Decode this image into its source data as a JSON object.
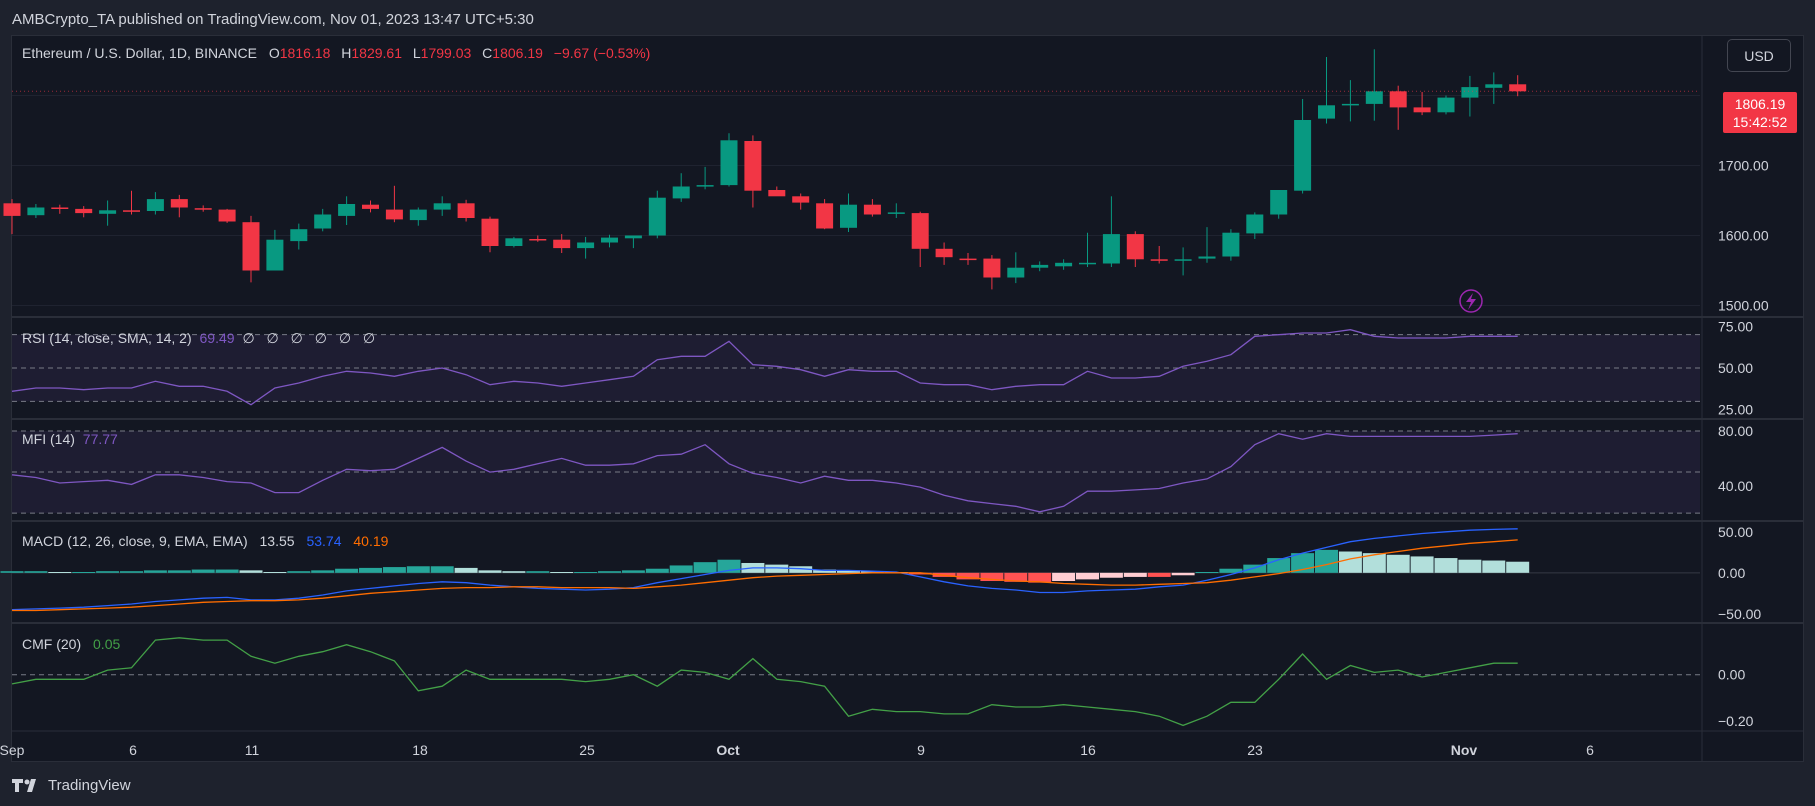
{
  "publisher_text": "AMBCrypto_TA published on TradingView.com, Nov 01, 2023 13:47 UTC+5:30",
  "main_legend": {
    "symbol": "Ethereum / U.S. Dollar, 1D, BINANCE",
    "o_label": "O",
    "o_value": "1816.18",
    "h_label": "H",
    "h_value": "1829.61",
    "l_label": "L",
    "l_value": "1799.03",
    "c_label": "C",
    "c_value": "1806.19",
    "change": "−9.67 (−0.53%)"
  },
  "currency_button": "USD",
  "price_tag": {
    "price": "1806.19",
    "countdown": "15:42:52"
  },
  "footer_brand": "TradingView",
  "colors": {
    "up": "#089981",
    "down": "#f23645",
    "rsi": "#7e57c2",
    "macd": "#2962ff",
    "signal": "#ff6d00",
    "cmf": "#43a047",
    "bg": "#131722"
  },
  "chart_data": [
    {
      "type": "candlestick",
      "title": "Ethereum / U.S. Dollar, 1D, BINANCE",
      "x_ticks": [
        "Sep",
        "6",
        "11",
        "18",
        "25",
        "Oct",
        "9",
        "16",
        "23",
        "Nov",
        "6"
      ],
      "y_ticks": [
        "1500.00",
        "1600.00",
        "1700.00"
      ],
      "ylim": [
        1485,
        1885
      ],
      "candles": [
        {
          "o": 1646,
          "h": 1652,
          "l": 1602,
          "c": 1628
        },
        {
          "o": 1629,
          "h": 1645,
          "l": 1625,
          "c": 1640
        },
        {
          "o": 1640,
          "h": 1644,
          "l": 1631,
          "c": 1638
        },
        {
          "o": 1638,
          "h": 1642,
          "l": 1626,
          "c": 1632
        },
        {
          "o": 1631,
          "h": 1650,
          "l": 1614,
          "c": 1636
        },
        {
          "o": 1636,
          "h": 1664,
          "l": 1630,
          "c": 1634
        },
        {
          "o": 1635,
          "h": 1662,
          "l": 1630,
          "c": 1652
        },
        {
          "o": 1652,
          "h": 1658,
          "l": 1626,
          "c": 1640
        },
        {
          "o": 1639,
          "h": 1643,
          "l": 1634,
          "c": 1638
        },
        {
          "o": 1637,
          "h": 1638,
          "l": 1618,
          "c": 1620
        },
        {
          "o": 1619,
          "h": 1628,
          "l": 1533,
          "c": 1550
        },
        {
          "o": 1550,
          "h": 1608,
          "l": 1550,
          "c": 1594
        },
        {
          "o": 1592,
          "h": 1617,
          "l": 1580,
          "c": 1609
        },
        {
          "o": 1610,
          "h": 1638,
          "l": 1606,
          "c": 1630
        },
        {
          "o": 1628,
          "h": 1656,
          "l": 1615,
          "c": 1645
        },
        {
          "o": 1644,
          "h": 1650,
          "l": 1633,
          "c": 1638
        },
        {
          "o": 1637,
          "h": 1671,
          "l": 1619,
          "c": 1623
        },
        {
          "o": 1622,
          "h": 1640,
          "l": 1614,
          "c": 1637
        },
        {
          "o": 1637,
          "h": 1656,
          "l": 1628,
          "c": 1646
        },
        {
          "o": 1646,
          "h": 1651,
          "l": 1620,
          "c": 1625
        },
        {
          "o": 1624,
          "h": 1627,
          "l": 1576,
          "c": 1585
        },
        {
          "o": 1585,
          "h": 1598,
          "l": 1583,
          "c": 1596
        },
        {
          "o": 1595,
          "h": 1600,
          "l": 1591,
          "c": 1594
        },
        {
          "o": 1594,
          "h": 1602,
          "l": 1575,
          "c": 1582
        },
        {
          "o": 1582,
          "h": 1598,
          "l": 1567,
          "c": 1590
        },
        {
          "o": 1590,
          "h": 1601,
          "l": 1583,
          "c": 1597
        },
        {
          "o": 1596,
          "h": 1600,
          "l": 1582,
          "c": 1600
        },
        {
          "o": 1600,
          "h": 1664,
          "l": 1596,
          "c": 1654
        },
        {
          "o": 1653,
          "h": 1689,
          "l": 1648,
          "c": 1670
        },
        {
          "o": 1670,
          "h": 1698,
          "l": 1666,
          "c": 1672
        },
        {
          "o": 1672,
          "h": 1746,
          "l": 1670,
          "c": 1736
        },
        {
          "o": 1735,
          "h": 1743,
          "l": 1640,
          "c": 1664
        },
        {
          "o": 1665,
          "h": 1670,
          "l": 1658,
          "c": 1656
        },
        {
          "o": 1656,
          "h": 1660,
          "l": 1637,
          "c": 1647
        },
        {
          "o": 1646,
          "h": 1652,
          "l": 1609,
          "c": 1610
        },
        {
          "o": 1611,
          "h": 1660,
          "l": 1605,
          "c": 1644
        },
        {
          "o": 1644,
          "h": 1652,
          "l": 1627,
          "c": 1630
        },
        {
          "o": 1632,
          "h": 1646,
          "l": 1625,
          "c": 1633
        },
        {
          "o": 1632,
          "h": 1634,
          "l": 1555,
          "c": 1581
        },
        {
          "o": 1581,
          "h": 1590,
          "l": 1558,
          "c": 1569
        },
        {
          "o": 1567,
          "h": 1575,
          "l": 1558,
          "c": 1566
        },
        {
          "o": 1567,
          "h": 1572,
          "l": 1523,
          "c": 1540
        },
        {
          "o": 1540,
          "h": 1576,
          "l": 1532,
          "c": 1554
        },
        {
          "o": 1554,
          "h": 1563,
          "l": 1549,
          "c": 1558
        },
        {
          "o": 1556,
          "h": 1566,
          "l": 1551,
          "c": 1561
        },
        {
          "o": 1560,
          "h": 1604,
          "l": 1555,
          "c": 1561
        },
        {
          "o": 1560,
          "h": 1656,
          "l": 1555,
          "c": 1602
        },
        {
          "o": 1602,
          "h": 1606,
          "l": 1555,
          "c": 1566
        },
        {
          "o": 1566,
          "h": 1585,
          "l": 1560,
          "c": 1564
        },
        {
          "o": 1564,
          "h": 1583,
          "l": 1543,
          "c": 1566
        },
        {
          "o": 1567,
          "h": 1612,
          "l": 1561,
          "c": 1570
        },
        {
          "o": 1570,
          "h": 1609,
          "l": 1564,
          "c": 1604
        },
        {
          "o": 1603,
          "h": 1633,
          "l": 1595,
          "c": 1630
        },
        {
          "o": 1630,
          "h": 1662,
          "l": 1624,
          "c": 1665
        },
        {
          "o": 1664,
          "h": 1795,
          "l": 1660,
          "c": 1765
        },
        {
          "o": 1767,
          "h": 1855,
          "l": 1760,
          "c": 1786
        },
        {
          "o": 1786,
          "h": 1822,
          "l": 1763,
          "c": 1788
        },
        {
          "o": 1788,
          "h": 1866,
          "l": 1764,
          "c": 1806
        },
        {
          "o": 1806,
          "h": 1814,
          "l": 1751,
          "c": 1783
        },
        {
          "o": 1783,
          "h": 1805,
          "l": 1772,
          "c": 1776
        },
        {
          "o": 1776,
          "h": 1800,
          "l": 1773,
          "c": 1797
        },
        {
          "o": 1797,
          "h": 1828,
          "l": 1770,
          "c": 1812
        },
        {
          "o": 1811,
          "h": 1833,
          "l": 1788,
          "c": 1816
        },
        {
          "o": 1816,
          "h": 1829,
          "l": 1799,
          "c": 1806
        }
      ]
    },
    {
      "type": "line",
      "title": "RSI (14, close, SMA, 14, 2)",
      "last_value": "69.49",
      "placeholders": [
        "∅",
        "∅",
        "∅",
        "∅",
        "∅",
        "∅"
      ],
      "y_ticks": [
        "25.00",
        "50.00",
        "75.00"
      ],
      "levels": [
        70,
        50,
        30
      ],
      "ylim": [
        20,
        80
      ],
      "values": [
        36,
        38,
        38,
        37,
        38,
        38,
        42,
        39,
        39,
        36,
        28,
        38,
        41,
        45,
        48,
        47,
        45,
        48,
        50,
        46,
        40,
        42,
        41,
        39,
        41,
        43,
        45,
        55,
        57,
        57,
        66,
        52,
        51,
        49,
        45,
        49,
        48,
        48,
        41,
        40,
        40,
        37,
        39,
        40,
        40,
        48,
        44,
        44,
        45,
        51,
        54,
        58,
        69,
        70,
        71,
        71,
        73,
        69,
        68,
        68,
        68,
        69,
        69,
        69
      ]
    },
    {
      "type": "line",
      "title": "MFI (14)",
      "last_value": "77.77",
      "y_ticks": [
        "40.00",
        "80.00"
      ],
      "levels": [
        80,
        50,
        20
      ],
      "ylim": [
        15,
        88
      ],
      "values": [
        48,
        46,
        42,
        43,
        44,
        41,
        48,
        48,
        46,
        43,
        42,
        35,
        35,
        44,
        52,
        51,
        52,
        60,
        68,
        58,
        50,
        52,
        56,
        60,
        55,
        55,
        56,
        62,
        63,
        70,
        56,
        49,
        46,
        42,
        47,
        44,
        44,
        42,
        39,
        33,
        29,
        27,
        25,
        21,
        25,
        36,
        36,
        37,
        38,
        42,
        45,
        54,
        70,
        78,
        74,
        78,
        76,
        76,
        76,
        76,
        76,
        76,
        77,
        78
      ]
    },
    {
      "type": "bar+line",
      "title": "MACD (12, 26, close, 9, EMA, EMA)",
      "values_text": {
        "histogram": "13.55",
        "macd": "53.74",
        "signal": "40.19"
      },
      "y_ticks": [
        "−50.00",
        "0.00",
        "50.00"
      ],
      "ylim": [
        -60,
        62
      ],
      "histogram": [
        2,
        2,
        1,
        1,
        2,
        2,
        3,
        3,
        4,
        4,
        3,
        1,
        2,
        3,
        5,
        6,
        7,
        8,
        8,
        6,
        3,
        2,
        2,
        1,
        1,
        2,
        3,
        5,
        9,
        13,
        16,
        12,
        10,
        8,
        4,
        3,
        2,
        1,
        -2,
        -5,
        -8,
        -10,
        -11,
        -12,
        -10,
        -8,
        -6,
        -5,
        -5,
        -3,
        1,
        5,
        10,
        18,
        24,
        28,
        26,
        24,
        22,
        20,
        18,
        16,
        15,
        13.55
      ],
      "macd": [
        -45,
        -44,
        -43,
        -42,
        -40,
        -38,
        -35,
        -33,
        -31,
        -30,
        -33,
        -33,
        -31,
        -27,
        -22,
        -19,
        -16,
        -13,
        -11,
        -12,
        -15,
        -17,
        -19,
        -20,
        -21,
        -20,
        -18,
        -12,
        -7,
        -2,
        3,
        6,
        6,
        5,
        3,
        3,
        2,
        1,
        -5,
        -11,
        -16,
        -19,
        -21,
        -24,
        -24,
        -22,
        -21,
        -20,
        -17,
        -15,
        -9,
        -2,
        6,
        16,
        24,
        31,
        38,
        42,
        45,
        48,
        50,
        52,
        53,
        53.74
      ],
      "signal": [
        -46,
        -46,
        -45,
        -44,
        -43,
        -42,
        -40,
        -38,
        -36,
        -35,
        -34,
        -34,
        -33,
        -31,
        -28,
        -25,
        -23,
        -21,
        -19,
        -18,
        -18,
        -17,
        -17,
        -18,
        -18,
        -18,
        -19,
        -17,
        -15,
        -12,
        -9,
        -6,
        -4,
        -3,
        -2,
        -1,
        0,
        0,
        0,
        -3,
        -6,
        -8,
        -10,
        -11,
        -13,
        -14,
        -15,
        -15,
        -14,
        -13,
        -12,
        -9,
        -5,
        -1,
        4,
        10,
        17,
        22,
        26,
        30,
        33,
        36,
        38,
        40.19
      ]
    },
    {
      "type": "line",
      "title": "CMF (20)",
      "last_value": "0.05",
      "y_ticks": [
        "−0.20",
        "0.00"
      ],
      "levels": [
        0
      ],
      "ylim": [
        -0.24,
        0.22
      ],
      "values": [
        -0.04,
        -0.02,
        -0.02,
        -0.02,
        0.02,
        0.03,
        0.15,
        0.16,
        0.15,
        0.15,
        0.08,
        0.05,
        0.08,
        0.1,
        0.13,
        0.1,
        0.06,
        -0.07,
        -0.05,
        0.02,
        -0.02,
        -0.02,
        -0.02,
        -0.02,
        -0.03,
        -0.02,
        0.0,
        -0.05,
        0.02,
        0.01,
        -0.02,
        0.07,
        -0.02,
        -0.03,
        -0.05,
        -0.18,
        -0.15,
        -0.16,
        -0.16,
        -0.17,
        -0.17,
        -0.13,
        -0.14,
        -0.14,
        -0.13,
        -0.14,
        -0.15,
        -0.16,
        -0.18,
        -0.22,
        -0.18,
        -0.12,
        -0.12,
        -0.02,
        0.09,
        -0.02,
        0.04,
        0.01,
        0.02,
        -0.01,
        0.01,
        0.03,
        0.05,
        0.05
      ]
    }
  ]
}
